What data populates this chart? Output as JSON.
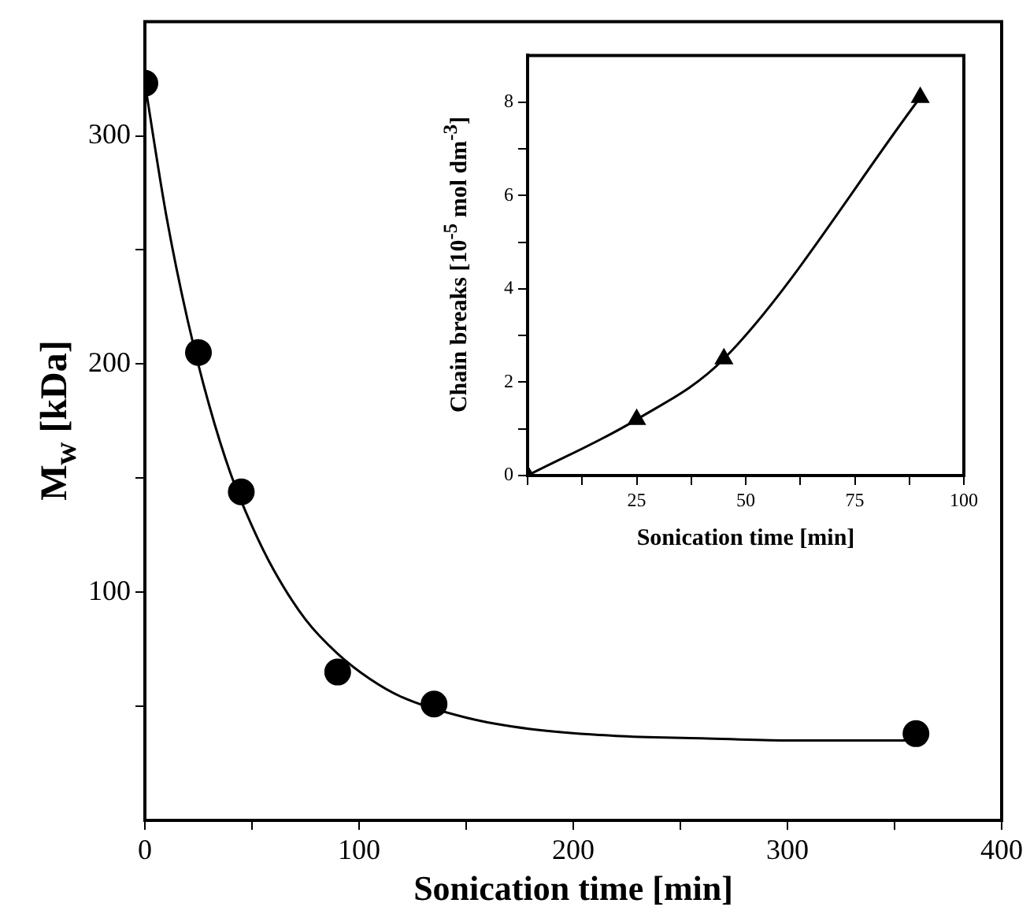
{
  "chart_data": [
    {
      "type": "scatter",
      "xlabel": "Sonication time [min]",
      "ylabel": "M$_{w}$ [kDa]",
      "xlim": [
        0,
        400
      ],
      "ylim": [
        0,
        350
      ],
      "xticks": [
        0,
        {
          "value": 50,
          "label": null
        },
        100,
        {
          "value": 150,
          "label": null
        },
        200,
        {
          "value": 250,
          "label": null
        },
        300,
        {
          "value": 350,
          "label": null
        },
        400
      ],
      "yticks": [
        {
          "value": 50,
          "label": null
        },
        100,
        {
          "value": 150,
          "label": null
        },
        200,
        {
          "value": 250,
          "label": null
        },
        300
      ],
      "marker": "circle",
      "series": [
        {
          "color": "#000000",
          "x": [
            0,
            25,
            45,
            90,
            135,
            360
          ],
          "values": [
            323,
            205,
            144,
            65,
            51,
            38
          ]
        },
        {
          "type": "line",
          "color": "#000000",
          "marker": "none",
          "x": [
            0,
            10,
            20,
            30,
            40,
            50,
            60,
            75,
            90,
            105,
            120,
            150,
            180,
            220,
            260,
            300,
            360
          ],
          "values": [
            323,
            265,
            219,
            182,
            152,
            129,
            110,
            88,
            73,
            62,
            54,
            45,
            40,
            37,
            36,
            35,
            35
          ]
        }
      ]
    },
    {
      "type": "line",
      "xlabel": "Sonication time [min]",
      "ylabel": "Chain breaks [10$^{-5}$ mol dm$^{-3}$]",
      "xlim": [
        0,
        100
      ],
      "ylim": [
        0,
        9
      ],
      "xticks": [
        {
          "value": 0,
          "label": null
        },
        {
          "value": 12.5,
          "label": null
        },
        25,
        {
          "value": 37.5,
          "label": null
        },
        50,
        {
          "value": 62.5,
          "label": null
        },
        75,
        {
          "value": 87.5,
          "label": null
        },
        100
      ],
      "yticks": [
        0,
        {
          "value": 1,
          "label": null
        },
        2,
        {
          "value": 3,
          "label": null
        },
        4,
        {
          "value": 5,
          "label": null
        },
        6,
        {
          "value": 7,
          "label": null
        },
        8
      ],
      "marker": "triangle",
      "series": [
        {
          "color": "#000000",
          "x": [
            0,
            25,
            45,
            90
          ],
          "values": [
            0,
            1.2,
            2.5,
            8.1
          ]
        }
      ]
    }
  ]
}
